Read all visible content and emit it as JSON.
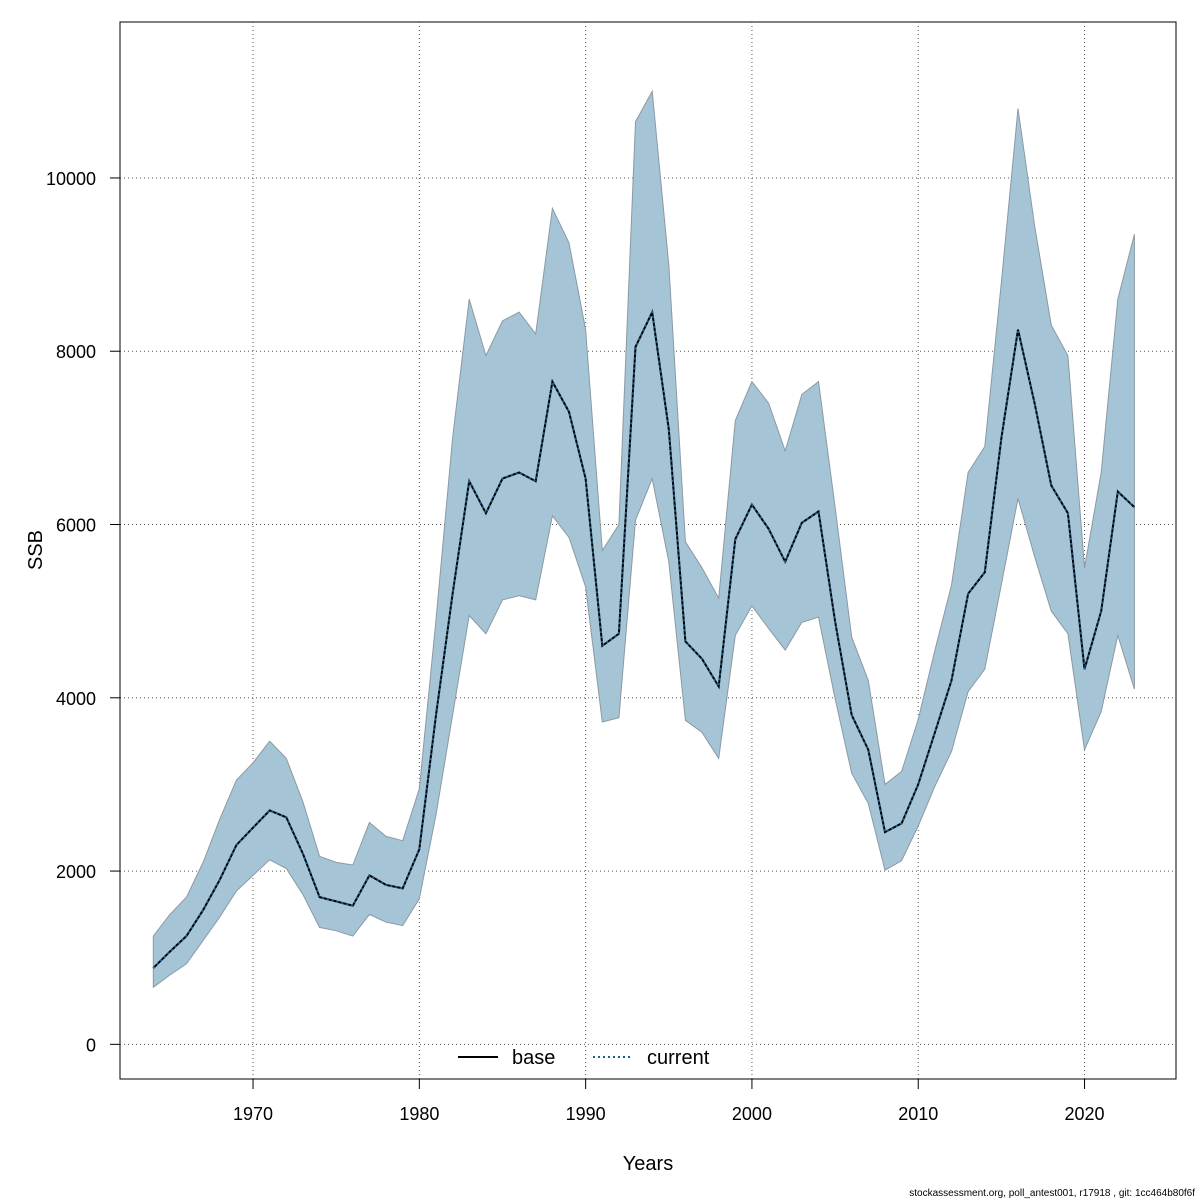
{
  "chart_data": {
    "type": "line",
    "xlabel": "Years",
    "ylabel": "SSB",
    "xlim": [
      1962,
      2025.5
    ],
    "ylim": [
      -400,
      11800
    ],
    "xticks": [
      1970,
      1980,
      1990,
      2000,
      2010,
      2020
    ],
    "yticks": [
      0,
      2000,
      4000,
      6000,
      8000,
      10000
    ],
    "grid": true,
    "legend_position": "bottom-center",
    "colors": {
      "band": "#a5c4d6",
      "band_edge": "#8a9aa4",
      "base": "#000000",
      "current": "#1f5f8b"
    },
    "years": [
      1964,
      1965,
      1966,
      1967,
      1968,
      1969,
      1970,
      1971,
      1972,
      1973,
      1974,
      1975,
      1976,
      1977,
      1978,
      1979,
      1980,
      1981,
      1982,
      1983,
      1984,
      1985,
      1986,
      1987,
      1988,
      1989,
      1990,
      1991,
      1992,
      1993,
      1994,
      1995,
      1996,
      1997,
      1998,
      1999,
      2000,
      2001,
      2002,
      2003,
      2004,
      2005,
      2006,
      2007,
      2008,
      2009,
      2010,
      2011,
      2012,
      2013,
      2014,
      2015,
      2016,
      2017,
      2018,
      2019,
      2020,
      2021,
      2022,
      2023
    ],
    "series": [
      {
        "name": "base",
        "line_style": "solid",
        "values": [
          880,
          1070,
          1250,
          1550,
          1900,
          2300,
          2500,
          2700,
          2620,
          2200,
          1700,
          1650,
          1600,
          1950,
          1840,
          1800,
          2250,
          3800,
          5200,
          6500,
          6130,
          6530,
          6600,
          6500,
          7650,
          7300,
          6530,
          4600,
          4740,
          8050,
          8450,
          7100,
          4650,
          4450,
          4130,
          5830,
          6230,
          5950,
          5570,
          6020,
          6150,
          4880,
          3800,
          3400,
          2450,
          2550,
          3000,
          3600,
          4200,
          5200,
          5450,
          7000,
          8250,
          7400,
          6450,
          6130,
          4330,
          5000,
          6380,
          6200
        ]
      },
      {
        "name": "current",
        "line_style": "dotted",
        "values": [
          880,
          1070,
          1250,
          1550,
          1900,
          2300,
          2500,
          2700,
          2620,
          2200,
          1700,
          1650,
          1600,
          1950,
          1840,
          1800,
          2250,
          3800,
          5200,
          6500,
          6130,
          6530,
          6600,
          6500,
          7650,
          7300,
          6530,
          4600,
          4740,
          8050,
          8450,
          7100,
          4650,
          4450,
          4130,
          5830,
          6230,
          5950,
          5570,
          6020,
          6150,
          4880,
          3800,
          3400,
          2450,
          2550,
          3000,
          3600,
          4200,
          5200,
          5450,
          7000,
          8250,
          7400,
          6450,
          6130,
          4330,
          5000,
          6380,
          6200
        ]
      }
    ],
    "band_upper": [
      1250,
      1500,
      1700,
      2100,
      2600,
      3050,
      3250,
      3500,
      3300,
      2800,
      2170,
      2100,
      2070,
      2560,
      2400,
      2350,
      2950,
      4900,
      7000,
      8600,
      7950,
      8350,
      8450,
      8200,
      9650,
      9250,
      8250,
      5700,
      6000,
      10650,
      11000,
      9000,
      5800,
      5500,
      5150,
      7200,
      7650,
      7400,
      6850,
      7500,
      7650,
      6200,
      4700,
      4200,
      3000,
      3150,
      3750,
      4550,
      5300,
      6600,
      6900,
      8800,
      10800,
      9450,
      8300,
      7950,
      5500,
      6600,
      8600,
      9350
    ],
    "band_lower": [
      660,
      800,
      930,
      1200,
      1470,
      1770,
      1950,
      2130,
      2030,
      1730,
      1350,
      1310,
      1250,
      1500,
      1410,
      1370,
      1680,
      2650,
      3800,
      4950,
      4740,
      5130,
      5180,
      5130,
      6100,
      5850,
      5280,
      3720,
      3770,
      6050,
      6530,
      5570,
      3740,
      3600,
      3300,
      4720,
      5060,
      4800,
      4550,
      4870,
      4930,
      3990,
      3130,
      2780,
      2010,
      2120,
      2520,
      2980,
      3380,
      4070,
      4330,
      5310,
      6300,
      5630,
      5000,
      4740,
      3400,
      3840,
      4720,
      4100
    ],
    "legend": [
      "base",
      "current"
    ],
    "footer": "stockassessment.org, poll_antest001, r17918 , git: 1cc464b80f6f"
  }
}
